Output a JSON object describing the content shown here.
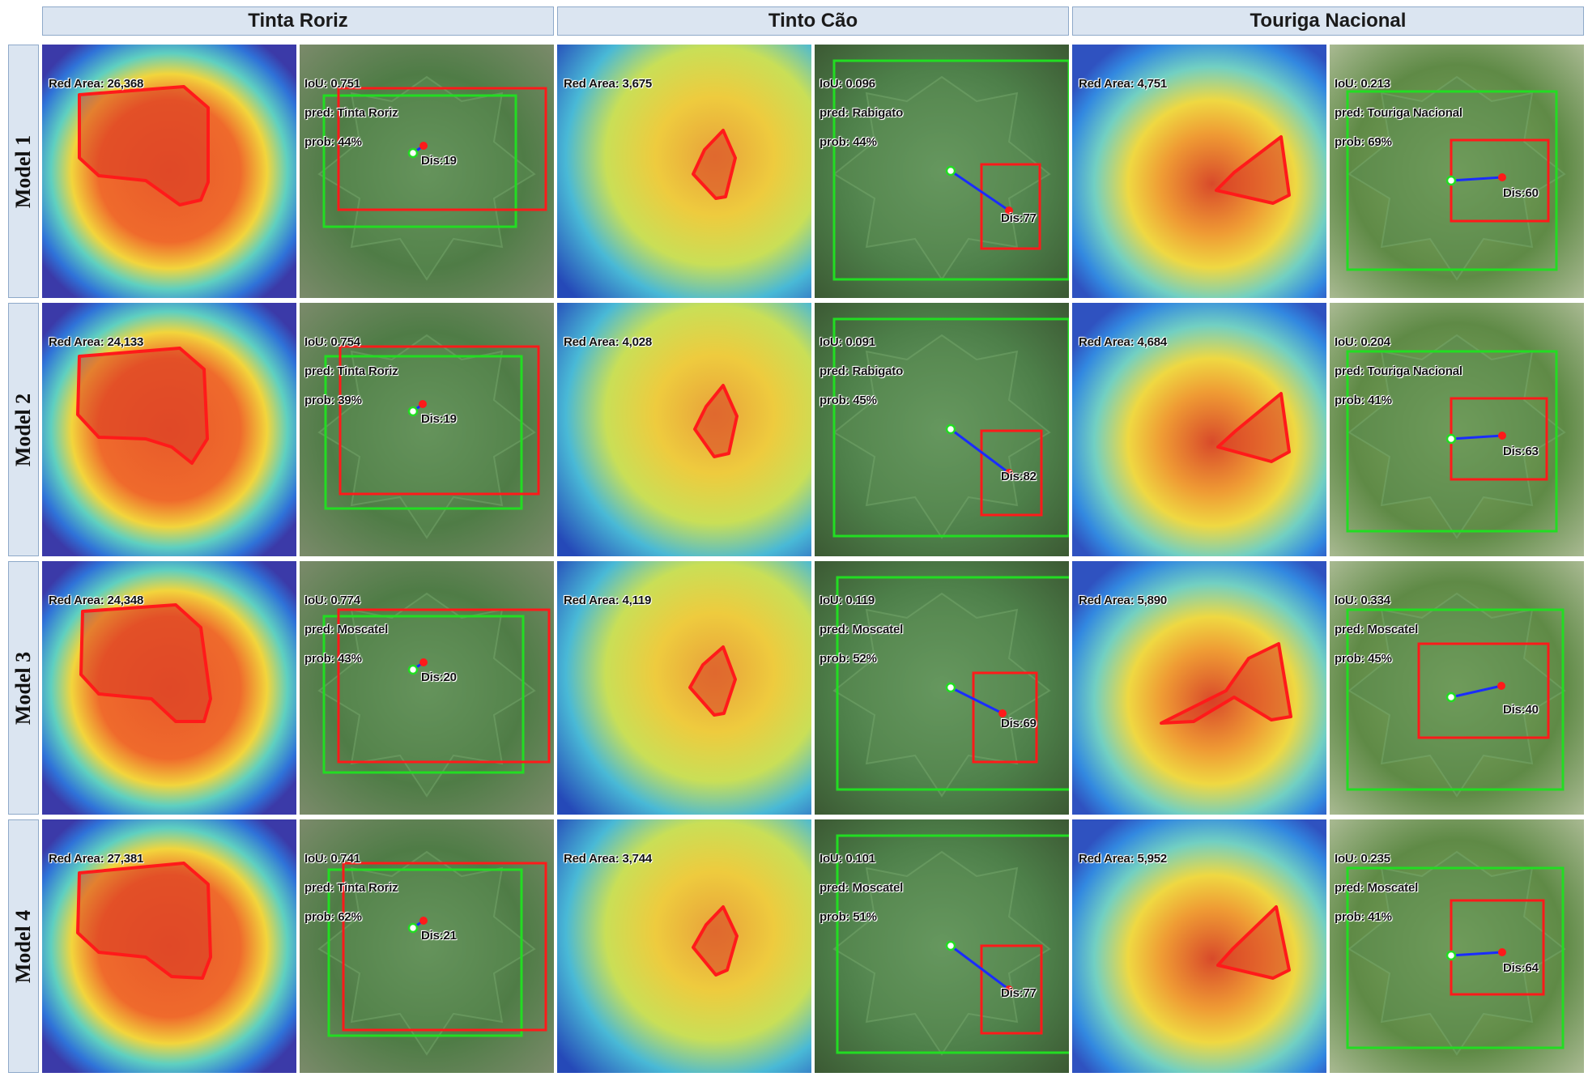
{
  "columns": [
    {
      "title": "Tinta Roriz"
    },
    {
      "title": "Tinto Cão"
    },
    {
      "title": "Touriga Nacional"
    }
  ],
  "rows": [
    {
      "model": "Model 1",
      "cells": [
        {
          "red_area": "Red Area: 26,368",
          "iou": "IoU: 0.751",
          "pred": "pred: Tinta Roriz",
          "prob": "prob: 44%",
          "dis": "Dis:19"
        },
        {
          "red_area": "Red Area: 3,675",
          "iou": "IoU: 0.096",
          "pred": "pred: Rabigato",
          "prob": "prob: 44%",
          "dis": "Dis:77"
        },
        {
          "red_area": "Red Area: 4,751",
          "iou": "IoU: 0.213",
          "pred": "pred: Touriga Nacional",
          "prob": "prob: 69%",
          "dis": "Dis:60"
        }
      ]
    },
    {
      "model": "Model 2",
      "cells": [
        {
          "red_area": "Red Area: 24,133",
          "iou": "IoU: 0.754",
          "pred": "pred: Tinta Roriz",
          "prob": "prob: 39%",
          "dis": "Dis:19"
        },
        {
          "red_area": "Red Area: 4,028",
          "iou": "IoU: 0.091",
          "pred": "pred: Rabigato",
          "prob": "prob: 45%",
          "dis": "Dis:82"
        },
        {
          "red_area": "Red Area: 4,684",
          "iou": "IoU: 0.204",
          "pred": "pred: Touriga Nacional",
          "prob": "prob: 41%",
          "dis": "Dis:63"
        }
      ]
    },
    {
      "model": "Model 3",
      "cells": [
        {
          "red_area": "Red Area: 24,348",
          "iou": "IoU: 0.774",
          "pred": "pred: Moscatel",
          "prob": "prob: 43%",
          "dis": "Dis:20"
        },
        {
          "red_area": "Red Area: 4,119",
          "iou": "IoU: 0.119",
          "pred": "pred: Moscatel",
          "prob": "prob: 52%",
          "dis": "Dis:69"
        },
        {
          "red_area": "Red Area: 5,890",
          "iou": "IoU: 0.334",
          "pred": "pred: Moscatel",
          "prob": "prob: 45%",
          "dis": "Dis:40"
        }
      ]
    },
    {
      "model": "Model 4",
      "cells": [
        {
          "red_area": "Red Area: 27,381",
          "iou": "IoU: 0.741",
          "pred": "pred: Tinta Roriz",
          "prob": "prob: 62%",
          "dis": "Dis:21"
        },
        {
          "red_area": "Red Area: 3,744",
          "iou": "IoU: 0.101",
          "pred": "pred: Moscatel",
          "prob": "prob: 51%",
          "dis": "Dis:77"
        },
        {
          "red_area": "Red Area: 5,952",
          "iou": "IoU: 0.235",
          "pred": "pred: Moscatel",
          "prob": "prob: 41%",
          "dis": "Dis:64"
        }
      ]
    }
  ],
  "colors": {
    "heat_red": "#e8341f",
    "heat_yellow": "#f2e33a",
    "heat_blue": "#2a5fd6",
    "leaf_green": "#4f7f45",
    "gt_box": "#22dd22",
    "pred_box": "#ff1a1a",
    "dis_line": "#1a2cff",
    "header_bg": "#dbe5f1"
  },
  "icons": {
    "heatmap_panel": "gradcam-heatmap",
    "leaf_panel": "grape-leaf-photo"
  }
}
